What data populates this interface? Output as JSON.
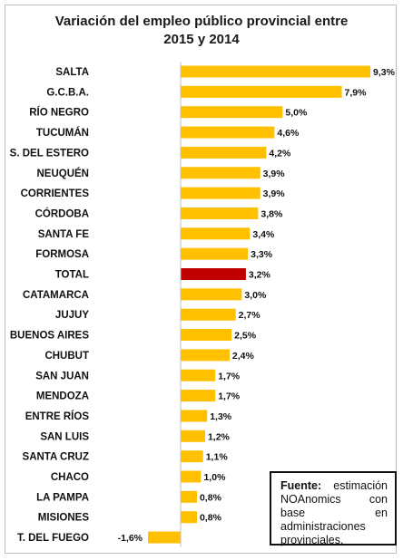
{
  "chart_data": {
    "type": "bar",
    "orientation": "horizontal",
    "title_line1": "Variación del empleo público provincial entre",
    "title_line2": "2015 y 2014",
    "xlim": [
      -2,
      10
    ],
    "colors": {
      "default": "#FFC000",
      "highlight": "#C00000"
    },
    "highlight_category": "TOTAL",
    "categories": [
      "SALTA",
      "G.C.B.A.",
      "RÍO NEGRO",
      "TUCUMÁN",
      "S. DEL ESTERO",
      "NEUQUÉN",
      "CORRIENTES",
      "CÓRDOBA",
      "SANTA FE",
      "FORMOSA",
      "TOTAL",
      "CATAMARCA",
      "JUJUY",
      "BUENOS AIRES",
      "CHUBUT",
      "SAN JUAN",
      "MENDOZA",
      "ENTRE RÍOS",
      "SAN LUIS",
      "SANTA CRUZ",
      "CHACO",
      "LA PAMPA",
      "MISIONES",
      "T. DEL FUEGO"
    ],
    "values": [
      9.3,
      7.9,
      5.0,
      4.6,
      4.2,
      3.9,
      3.9,
      3.8,
      3.4,
      3.3,
      3.2,
      3.0,
      2.7,
      2.5,
      2.4,
      1.7,
      1.7,
      1.3,
      1.2,
      1.1,
      1.0,
      0.8,
      0.8,
      -1.6
    ],
    "value_labels": [
      "9,3%",
      "7,9%",
      "5,0%",
      "4,6%",
      "4,2%",
      "3,9%",
      "3,9%",
      "3,8%",
      "3,4%",
      "3,3%",
      "3,2%",
      "3,0%",
      "2,7%",
      "2,5%",
      "2,4%",
      "1,7%",
      "1,7%",
      "1,3%",
      "1,2%",
      "1,1%",
      "1,0%",
      "0,8%",
      "0,8%",
      "-1,6%"
    ]
  },
  "source_note": {
    "label": "Fuente:",
    "text": "estimación NOAnomics con base en administraciones provinciales."
  }
}
